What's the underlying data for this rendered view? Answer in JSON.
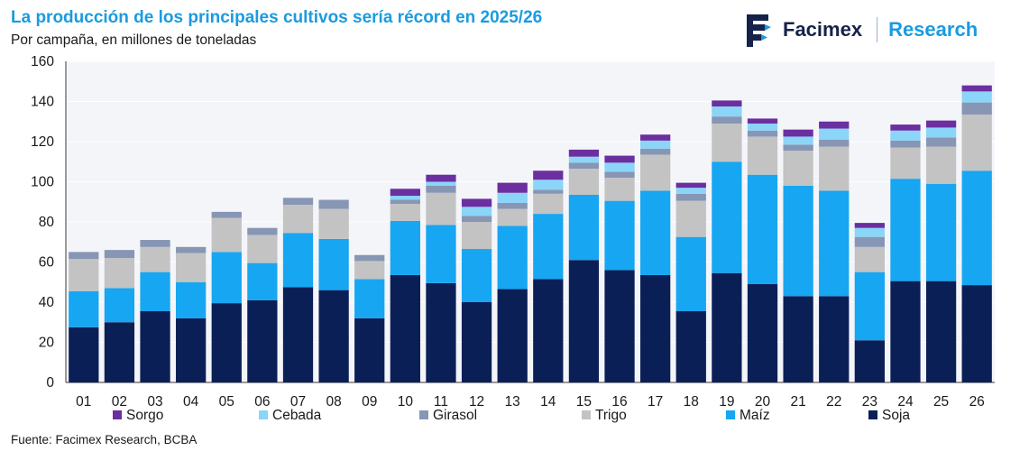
{
  "header": {
    "title": "La producción de los principales cultivos sería récord en 2025/26",
    "subtitle": "Por campaña, en millones de toneladas"
  },
  "brand": {
    "name": "Facimex",
    "tag": "Research",
    "logo_icon": "facimex-logo-icon"
  },
  "footer": {
    "source": "Fuente: Facimex Research, BCBA"
  },
  "colors": {
    "Soja": "#0b1f57",
    "Maíz": "#17a6f2",
    "Trigo": "#c3c3c3",
    "Girasol": "#8796b4",
    "Cebada": "#8ad5f8",
    "Sorgo": "#6b2fa0",
    "grid": "#e3e6ee",
    "title": "#1a9be0"
  },
  "chart_data": {
    "type": "bar",
    "stacked": true,
    "title": "La producción de los principales cultivos sería récord en 2025/26",
    "ylabel": "Por campaña, en millones de toneladas",
    "xlabel": "",
    "ylim": [
      0,
      160
    ],
    "yticks": [
      0,
      20,
      40,
      60,
      80,
      100,
      120,
      140,
      160
    ],
    "grid": false,
    "legend_position": "bottom",
    "legend_order": [
      "Sorgo",
      "Cebada",
      "Girasol",
      "Trigo",
      "Maíz",
      "Soja"
    ],
    "categories": [
      "01",
      "02",
      "03",
      "04",
      "05",
      "06",
      "07",
      "08",
      "09",
      "10",
      "11",
      "12",
      "13",
      "14",
      "15",
      "16",
      "17",
      "18",
      "19",
      "20",
      "21",
      "22",
      "23",
      "24",
      "25",
      "26"
    ],
    "series": [
      {
        "name": "Soja",
        "values": [
          27.5,
          30,
          35.5,
          32,
          39.5,
          41,
          47.5,
          46,
          32,
          53.5,
          49.5,
          40,
          46.5,
          51.5,
          61,
          56,
          53.5,
          35.5,
          54.5,
          49,
          43,
          43,
          21,
          50.5,
          50.5,
          48.5
        ]
      },
      {
        "name": "Maíz",
        "values": [
          18,
          17,
          19.5,
          18,
          25.5,
          18.5,
          27,
          25.5,
          19.5,
          27,
          29,
          26.5,
          31.5,
          32.5,
          32.5,
          34.5,
          42,
          37,
          55.5,
          54.5,
          55,
          52.5,
          34,
          51,
          48.5,
          57
        ]
      },
      {
        "name": "Trigo",
        "values": [
          16,
          15,
          12.5,
          14.5,
          17,
          14,
          14,
          15,
          9,
          8.5,
          16,
          13.5,
          8.5,
          10,
          13,
          11.5,
          18,
          18,
          19,
          19,
          17.5,
          22,
          12.5,
          15.5,
          18.5,
          28
        ]
      },
      {
        "name": "Girasol",
        "values": [
          3.5,
          4,
          3.5,
          3,
          3,
          3.5,
          3.5,
          4.5,
          3,
          2,
          3.5,
          3,
          3,
          2,
          3,
          3,
          3,
          3.5,
          3.5,
          3,
          3,
          3.5,
          5,
          3.5,
          4.5,
          6
        ]
      },
      {
        "name": "Cebada",
        "values": [
          0,
          0,
          0,
          0,
          0,
          0,
          0,
          0,
          0,
          2,
          2,
          4.5,
          5,
          5,
          3,
          4.5,
          4,
          3,
          5,
          3.5,
          4,
          5.5,
          4.5,
          5,
          5,
          5.5
        ]
      },
      {
        "name": "Sorgo",
        "values": [
          0,
          0,
          0,
          0,
          0,
          0,
          0,
          0,
          0,
          3.5,
          3.5,
          4,
          5,
          4.5,
          3.5,
          3.5,
          3,
          2.5,
          3,
          2.5,
          3.5,
          3.5,
          2.5,
          3,
          3.5,
          3
        ]
      }
    ]
  }
}
